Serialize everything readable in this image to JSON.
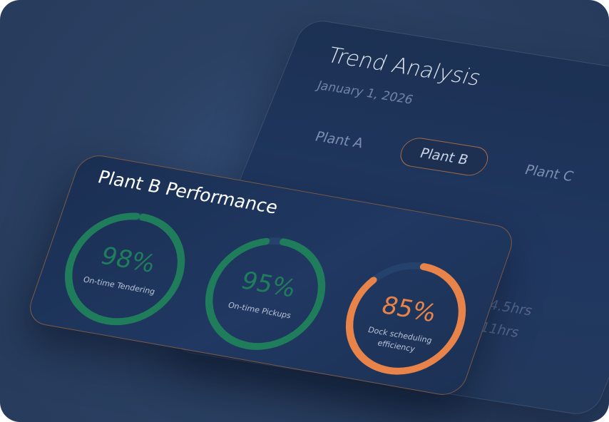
{
  "trend_card": {
    "title": "Trend Analysis",
    "date": "January 1, 2026",
    "tabs": [
      "Plant A",
      "Plant B",
      "Plant C"
    ],
    "selected_tab": 1,
    "metrics": [
      "4.5hrs",
      "11hrs"
    ]
  },
  "performance_card": {
    "title": "Plant B Performance",
    "gauge_range": [
      0,
      100
    ],
    "gauges": [
      {
        "value": 98,
        "label": "98%",
        "name": "On-time Tendering",
        "color": "#1f7d5c"
      },
      {
        "value": 95,
        "label": "95%",
        "name": "On-time Pickups",
        "color": "#1f7d5c"
      },
      {
        "value": 85,
        "label": "85%",
        "name": "Dock scheduling efficiency",
        "color": "#e8834a"
      }
    ]
  }
}
